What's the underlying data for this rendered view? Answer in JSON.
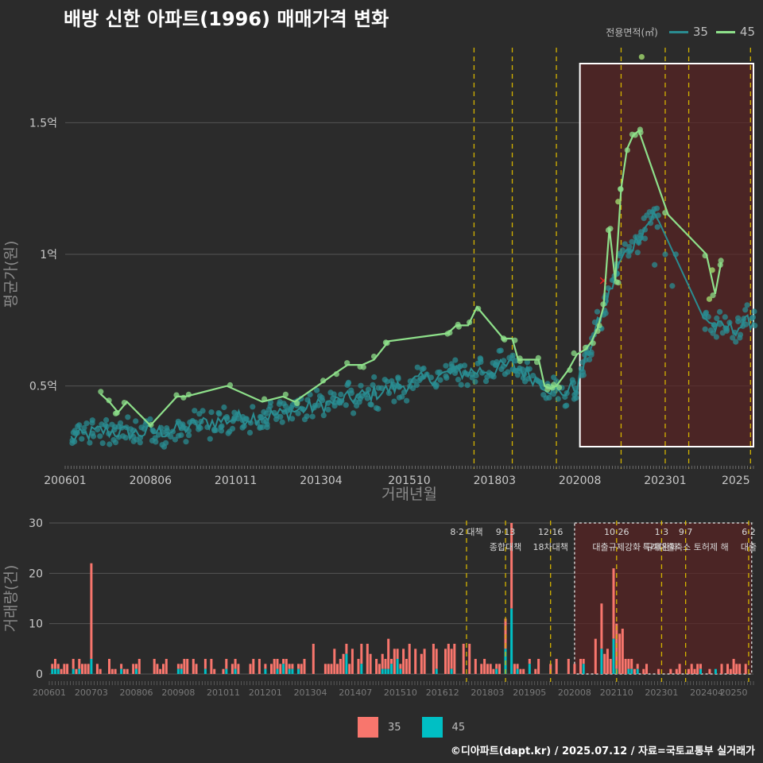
{
  "title": "배방 신한 아파트(1996) 매매가격 변화",
  "legend_top": {
    "label": "전용면적(㎡)",
    "items": [
      {
        "name": "35",
        "color": "#2a8c91"
      },
      {
        "name": "45",
        "color": "#8ee08a"
      }
    ]
  },
  "legend_bottom": {
    "items": [
      {
        "name": "35",
        "color": "#f8766d"
      },
      {
        "name": "45",
        "color": "#00bfc4"
      }
    ]
  },
  "footer": "©디아파트(dapt.kr) / 2025.07.12 / 자료=국토교통부 실거래가",
  "chart_data": [
    {
      "type": "line",
      "title": "배방 신한 아파트(1996) 매매가격 변화",
      "xlabel": "거래년월",
      "ylabel": "평균가(원)",
      "x_range": [
        "2006-01",
        "2025-07"
      ],
      "ylim": [
        0.2,
        1.8
      ],
      "y_unit": "억",
      "yticks": [
        {
          "value": 0.5,
          "label": "0.5억"
        },
        {
          "value": 1.0,
          "label": "1억"
        },
        {
          "value": 1.5,
          "label": "1.5억"
        }
      ],
      "xticks": [
        "200601",
        "200806",
        "201011",
        "201304",
        "201510",
        "201803",
        "202008",
        "202301",
        "2025"
      ],
      "grid": true,
      "highlight_range": [
        "2020-08",
        "2025-07"
      ],
      "policy_lines": [
        "2017-08",
        "2018-09",
        "2019-12",
        "2021-10",
        "2023-01",
        "2023-09",
        "2025-06"
      ],
      "series": [
        {
          "name": "45",
          "points": [
            [
              "2007-01",
              0.47
            ],
            [
              "2007-04",
              0.44
            ],
            [
              "2007-07",
              0.4
            ],
            [
              "2007-10",
              0.44
            ],
            [
              "2008-06",
              0.35
            ],
            [
              "2009-03",
              0.46
            ],
            [
              "2009-06",
              0.46
            ],
            [
              "2010-08",
              0.5
            ],
            [
              "2011-08",
              0.44
            ],
            [
              "2012-03",
              0.46
            ],
            [
              "2012-07",
              0.44
            ],
            [
              "2013-04",
              0.51
            ],
            [
              "2013-09",
              0.55
            ],
            [
              "2014-01",
              0.58
            ],
            [
              "2014-06",
              0.58
            ],
            [
              "2014-10",
              0.6
            ],
            [
              "2015-03",
              0.67
            ],
            [
              "2016-11",
              0.7
            ],
            [
              "2017-02",
              0.73
            ],
            [
              "2017-06",
              0.73
            ],
            [
              "2017-09",
              0.8
            ],
            [
              "2018-06",
              0.68
            ],
            [
              "2018-09",
              0.68
            ],
            [
              "2018-11",
              0.6
            ],
            [
              "2019-06",
              0.6
            ],
            [
              "2019-08",
              0.5
            ],
            [
              "2019-10",
              0.49
            ],
            [
              "2019-12",
              0.5
            ],
            [
              "2020-04",
              0.56
            ],
            [
              "2020-07",
              0.62
            ],
            [
              "2020-10",
              0.64
            ],
            [
              "2020-12",
              0.67
            ],
            [
              "2021-02",
              0.72
            ],
            [
              "2021-04",
              0.8
            ],
            [
              "2021-06",
              1.1
            ],
            [
              "2021-08",
              0.9
            ],
            [
              "2021-10",
              1.25
            ],
            [
              "2021-12",
              1.4
            ],
            [
              "2022-02",
              1.45
            ],
            [
              "2022-04",
              1.47
            ],
            [
              "2023-02",
              1.15
            ],
            [
              "2024-03",
              1.0
            ],
            [
              "2024-06",
              0.85
            ],
            [
              "2024-08",
              0.97
            ]
          ],
          "extra_points": [
            [
              "2022-05",
              1.75
            ],
            [
              "2021-09",
              1.2
            ],
            [
              "2024-04",
              0.83
            ],
            [
              "2024-05",
              0.94
            ]
          ]
        },
        {
          "name": "35",
          "trend": [
            [
              "2006-03",
              0.3
            ],
            [
              "2007-01",
              0.33
            ],
            [
              "2008-01",
              0.32
            ],
            [
              "2009-01",
              0.33
            ],
            [
              "2010-01",
              0.36
            ],
            [
              "2011-01",
              0.38
            ],
            [
              "2012-01",
              0.39
            ],
            [
              "2013-01",
              0.42
            ],
            [
              "2014-01",
              0.45
            ],
            [
              "2015-01",
              0.48
            ],
            [
              "2016-01",
              0.52
            ],
            [
              "2017-01",
              0.55
            ],
            [
              "2018-01",
              0.56
            ],
            [
              "2018-09",
              0.58
            ],
            [
              "2019-06",
              0.52
            ],
            [
              "2020-01",
              0.47
            ],
            [
              "2020-07",
              0.5
            ],
            [
              "2021-01",
              0.7
            ],
            [
              "2021-06",
              0.85
            ],
            [
              "2021-10",
              0.98
            ],
            [
              "2022-03",
              1.05
            ],
            [
              "2022-09",
              1.15
            ],
            [
              "2023-06",
              1.0
            ],
            [
              "2024-01",
              0.78
            ],
            [
              "2024-06",
              0.72
            ],
            [
              "2025-01",
              0.72
            ],
            [
              "2025-07",
              0.75
            ]
          ],
          "outliers": [
            [
              "2021-04",
              0.9,
              "x"
            ]
          ]
        }
      ]
    },
    {
      "type": "bar",
      "stacked": true,
      "ylabel": "거래량(건)",
      "ylim": [
        0,
        30
      ],
      "yticks": [
        0,
        10,
        20,
        30
      ],
      "xticks": [
        "200601",
        "200703",
        "200806",
        "200908",
        "201011",
        "201201",
        "201304",
        "201407",
        "201510",
        "201612",
        "201803",
        "201905",
        "202008",
        "202110",
        "202301",
        "202404",
        "20250"
      ],
      "highlight_range": [
        "2020-08",
        "2025-07"
      ],
      "policy_markers": [
        {
          "date": "2017-08",
          "line1": "8·2 대책",
          "line2": ""
        },
        {
          "date": "2018-09",
          "line1": "9·13",
          "line2": "종합대책"
        },
        {
          "date": "2019-12",
          "line1": "12·16",
          "line2": "18차대책"
        },
        {
          "date": "2021-10",
          "line1": "10·26",
          "line2": "대출규제강화"
        },
        {
          "date": "2023-01",
          "line1": "1·3",
          "line2": "규제완화"
        },
        {
          "date": "2023-09",
          "line1": "9·7",
          "line2": "특례대출축소 토허제 해"
        },
        {
          "date": "2025-06",
          "line1": "6·2",
          "line2": "대출"
        }
      ],
      "notable_values": [
        {
          "date": "2007-03",
          "total": 22,
          "s45": 3
        },
        {
          "date": "2018-11",
          "total": 30,
          "s45": 13
        },
        {
          "date": "2018-09",
          "total": 11,
          "s45": 5
        },
        {
          "date": "2021-09",
          "total": 21,
          "s45": 7
        },
        {
          "date": "2021-05",
          "total": 14,
          "s45": 5
        }
      ]
    }
  ]
}
